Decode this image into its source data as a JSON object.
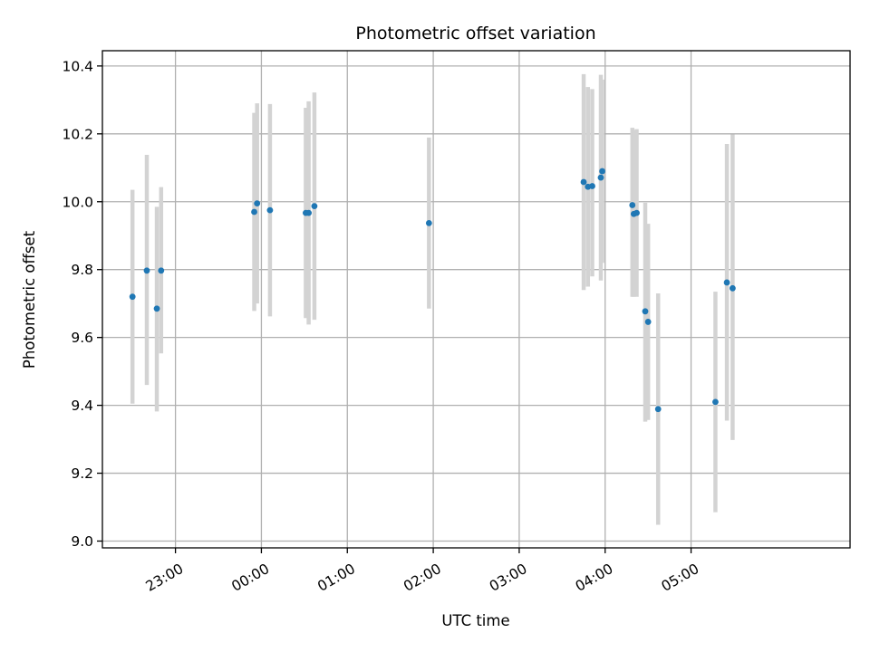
{
  "chart_data": {
    "type": "scatter",
    "title": "Photometric offset variation",
    "xlabel": "UTC time",
    "ylabel": "Photometric offset",
    "xlim": [
      -2.85,
      5.85
    ],
    "ylim": [
      8.98,
      10.445
    ],
    "x_ticks": [
      {
        "label": "23:00",
        "value": -2
      },
      {
        "label": "00:00",
        "value": -1
      },
      {
        "label": "01:00",
        "value": 0
      },
      {
        "label": "02:00",
        "value": 1
      },
      {
        "label": "03:00",
        "value": 2
      },
      {
        "label": "04:00",
        "value": 3
      },
      {
        "label": "05:00",
        "value": 4
      }
    ],
    "y_ticks": [
      {
        "label": "9.0",
        "value": 9.0
      },
      {
        "label": "9.2",
        "value": 9.2
      },
      {
        "label": "9.4",
        "value": 9.4
      },
      {
        "label": "9.6",
        "value": 9.6
      },
      {
        "label": "9.8",
        "value": 9.8
      },
      {
        "label": "10.0",
        "value": 10.0
      },
      {
        "label": "10.2",
        "value": 10.2
      },
      {
        "label": "10.4",
        "value": 10.4
      }
    ],
    "grid": true,
    "point_color": "#1f77b4",
    "error_bar_color": "#d3d3d3",
    "points": [
      {
        "time": "22:30",
        "y": 9.72,
        "ylow": 9.405,
        "yhigh": 10.035
      },
      {
        "time": "22:40",
        "y": 9.797,
        "ylow": 9.46,
        "yhigh": 10.138
      },
      {
        "time": "22:47",
        "y": 9.685,
        "ylow": 9.382,
        "yhigh": 9.985
      },
      {
        "time": "22:50",
        "y": 9.797,
        "ylow": 9.553,
        "yhigh": 10.043
      },
      {
        "time": "23:55",
        "y": 9.97,
        "ylow": 9.678,
        "yhigh": 10.262
      },
      {
        "time": "23:57",
        "y": 9.995,
        "ylow": 9.7,
        "yhigh": 10.29
      },
      {
        "time": "00:06",
        "y": 9.975,
        "ylow": 9.662,
        "yhigh": 10.288
      },
      {
        "time": "00:31",
        "y": 9.967,
        "ylow": 9.657,
        "yhigh": 10.277
      },
      {
        "time": "00:33",
        "y": 9.967,
        "ylow": 9.638,
        "yhigh": 10.296
      },
      {
        "time": "00:37",
        "y": 9.987,
        "ylow": 9.652,
        "yhigh": 10.322
      },
      {
        "time": "01:57",
        "y": 9.937,
        "ylow": 9.685,
        "yhigh": 10.189
      },
      {
        "time": "03:45",
        "y": 10.058,
        "ylow": 9.74,
        "yhigh": 10.376
      },
      {
        "time": "03:48",
        "y": 10.044,
        "ylow": 9.75,
        "yhigh": 10.338
      },
      {
        "time": "03:51",
        "y": 10.046,
        "ylow": 9.78,
        "yhigh": 10.332
      },
      {
        "time": "03:57",
        "y": 10.071,
        "ylow": 9.768,
        "yhigh": 10.374
      },
      {
        "time": "03:58",
        "y": 10.09,
        "ylow": 9.82,
        "yhigh": 10.36
      },
      {
        "time": "04:19",
        "y": 9.99,
        "ylow": 9.72,
        "yhigh": 10.218
      },
      {
        "time": "04:20",
        "y": 9.964,
        "ylow": 9.72,
        "yhigh": 10.21
      },
      {
        "time": "04:22",
        "y": 9.967,
        "ylow": 9.72,
        "yhigh": 10.214
      },
      {
        "time": "04:28",
        "y": 9.677,
        "ylow": 9.352,
        "yhigh": 9.997
      },
      {
        "time": "04:30",
        "y": 9.646,
        "ylow": 9.357,
        "yhigh": 9.935
      },
      {
        "time": "04:37",
        "y": 9.389,
        "ylow": 9.048,
        "yhigh": 9.73
      },
      {
        "time": "05:17",
        "y": 9.41,
        "ylow": 9.085,
        "yhigh": 9.735
      },
      {
        "time": "05:25",
        "y": 9.762,
        "ylow": 9.355,
        "yhigh": 10.17
      },
      {
        "time": "05:29",
        "y": 9.745,
        "ylow": 9.298,
        "yhigh": 10.198
      }
    ]
  }
}
